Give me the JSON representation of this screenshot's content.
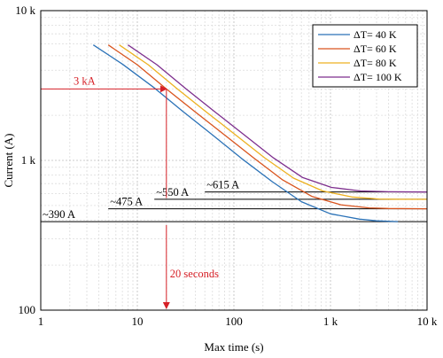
{
  "chart_data": {
    "type": "line",
    "xlabel": "Max time (s)",
    "ylabel": "Current (A)",
    "xscale": "log",
    "yscale": "log",
    "xlim": [
      1,
      10000
    ],
    "ylim": [
      100,
      10000
    ],
    "grid": true,
    "legend_placement": "top-right",
    "x_ticks": [
      {
        "value": 1,
        "label": "1"
      },
      {
        "value": 10,
        "label": "10"
      },
      {
        "value": 100,
        "label": "100"
      },
      {
        "value": 1000,
        "label": "1 k"
      },
      {
        "value": 10000,
        "label": "10 k"
      }
    ],
    "y_ticks": [
      {
        "value": 100,
        "label": "100"
      },
      {
        "value": 1000,
        "label": "1 k"
      },
      {
        "value": 10000,
        "label": "10 k"
      }
    ],
    "series": [
      {
        "name": "ΔT= 40 K",
        "color": "#2b72b7",
        "x": [
          3.5,
          7,
          15,
          30,
          60,
          120,
          250,
          500,
          1000,
          2000,
          3000,
          5000
        ],
        "y": [
          5900,
          4400,
          3050,
          2110,
          1480,
          1030,
          720,
          530,
          440,
          405,
          395,
          390
        ]
      },
      {
        "name": "ΔT= 60 K",
        "color": "#d9541e",
        "x": [
          5,
          10,
          20,
          40,
          80,
          160,
          320,
          640,
          1280,
          2500,
          4000,
          10000
        ],
        "y": [
          5900,
          4350,
          3000,
          2100,
          1480,
          1040,
          740,
          575,
          505,
          482,
          477,
          475
        ]
      },
      {
        "name": "ΔT= 80 K",
        "color": "#edb120",
        "x": [
          6.5,
          13,
          26,
          52,
          104,
          208,
          416,
          832,
          1664,
          3200,
          5000,
          10000
        ],
        "y": [
          5900,
          4350,
          3000,
          2100,
          1480,
          1040,
          760,
          625,
          570,
          552,
          550,
          550
        ]
      },
      {
        "name": "ΔT= 100 K",
        "color": "#7e2f8e",
        "x": [
          8,
          16,
          32,
          64,
          128,
          256,
          512,
          1024,
          2048,
          4000,
          10000
        ],
        "y": [
          5900,
          4350,
          3000,
          2100,
          1480,
          1040,
          770,
          660,
          625,
          617,
          615
        ]
      }
    ],
    "reference_lines": [
      {
        "label": "~390 A",
        "value": 390,
        "x_start": 1
      },
      {
        "label": "~475 A",
        "value": 475,
        "x_start": 5
      },
      {
        "label": "~550 A",
        "value": 550,
        "x_start": 15
      },
      {
        "label": "~615 A",
        "value": 615,
        "x_start": 50
      }
    ],
    "annotations": [
      {
        "label": "3 kA",
        "color": "#d62027",
        "y_value": 3000,
        "x_value": 20
      },
      {
        "label": "20 seconds",
        "color": "#d62027",
        "x_value": 20
      }
    ]
  }
}
